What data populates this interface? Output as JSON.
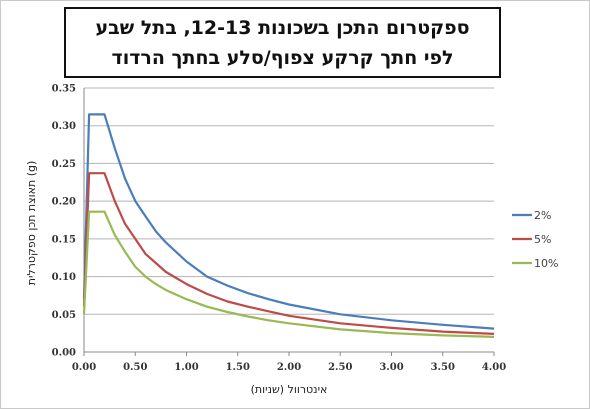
{
  "chart_data": {
    "type": "line",
    "title_lines": [
      "ספקטרום התכן בשכונות 12-13, בתל שבע",
      "לפי חתך קרקע צפוף/סלע בחתך הרדוד"
    ],
    "xlabel": "אינטרוול (שניות)",
    "ylabel": "תאוצת תכן ספקטרלית (g)",
    "xlim": [
      0,
      4
    ],
    "ylim": [
      0,
      0.35
    ],
    "x_ticks": [
      "0.00",
      "0.50",
      "1.00",
      "1.50",
      "2.00",
      "2.50",
      "3.00",
      "3.50",
      "4.00"
    ],
    "y_ticks": [
      "0.00",
      "0.05",
      "0.10",
      "0.15",
      "0.20",
      "0.25",
      "0.30",
      "0.35"
    ],
    "grid": "horizontal",
    "legend_position": "right",
    "series": [
      {
        "name": "2%",
        "color": "#4a7ebb",
        "points": [
          [
            0.0,
            0.07
          ],
          [
            0.05,
            0.315
          ],
          [
            0.2,
            0.315
          ],
          [
            0.3,
            0.27
          ],
          [
            0.4,
            0.23
          ],
          [
            0.5,
            0.2
          ],
          [
            0.6,
            0.18
          ],
          [
            0.7,
            0.16
          ],
          [
            0.8,
            0.145
          ],
          [
            1.0,
            0.12
          ],
          [
            1.2,
            0.1
          ],
          [
            1.4,
            0.088
          ],
          [
            1.6,
            0.078
          ],
          [
            1.8,
            0.07
          ],
          [
            2.0,
            0.063
          ],
          [
            2.5,
            0.05
          ],
          [
            3.0,
            0.042
          ],
          [
            3.5,
            0.036
          ],
          [
            4.0,
            0.031
          ]
        ]
      },
      {
        "name": "5%",
        "color": "#be4b48",
        "points": [
          [
            0.0,
            0.06
          ],
          [
            0.05,
            0.237
          ],
          [
            0.2,
            0.237
          ],
          [
            0.3,
            0.2
          ],
          [
            0.4,
            0.17
          ],
          [
            0.5,
            0.15
          ],
          [
            0.6,
            0.13
          ],
          [
            0.7,
            0.118
          ],
          [
            0.8,
            0.106
          ],
          [
            1.0,
            0.09
          ],
          [
            1.2,
            0.077
          ],
          [
            1.4,
            0.067
          ],
          [
            1.6,
            0.06
          ],
          [
            1.8,
            0.054
          ],
          [
            2.0,
            0.048
          ],
          [
            2.5,
            0.038
          ],
          [
            3.0,
            0.032
          ],
          [
            3.5,
            0.027
          ],
          [
            4.0,
            0.024
          ]
        ]
      },
      {
        "name": "10%",
        "color": "#98b954",
        "points": [
          [
            0.0,
            0.05
          ],
          [
            0.05,
            0.186
          ],
          [
            0.2,
            0.186
          ],
          [
            0.3,
            0.155
          ],
          [
            0.4,
            0.133
          ],
          [
            0.5,
            0.113
          ],
          [
            0.6,
            0.1
          ],
          [
            0.7,
            0.09
          ],
          [
            0.8,
            0.082
          ],
          [
            1.0,
            0.07
          ],
          [
            1.2,
            0.06
          ],
          [
            1.4,
            0.053
          ],
          [
            1.6,
            0.047
          ],
          [
            1.8,
            0.042
          ],
          [
            2.0,
            0.038
          ],
          [
            2.5,
            0.03
          ],
          [
            3.0,
            0.025
          ],
          [
            3.5,
            0.022
          ],
          [
            4.0,
            0.02
          ]
        ]
      }
    ]
  }
}
